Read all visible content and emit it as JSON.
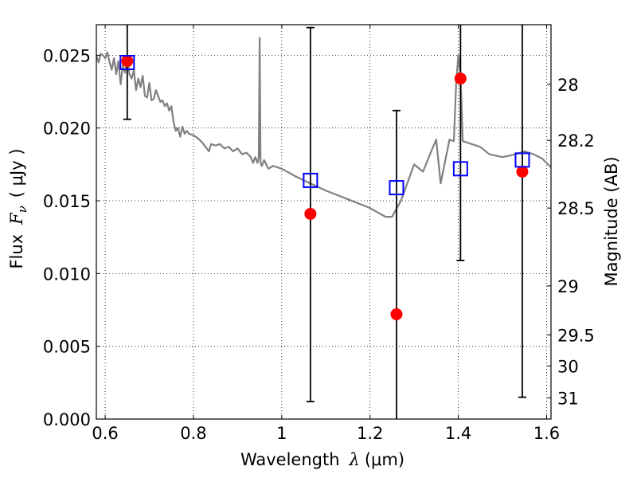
{
  "chart_data": {
    "type": "scatter",
    "title": "",
    "xlabel": "Wavelength",
    "xlabel_symbol": "λ",
    "xlabel_unit": "(μm)",
    "ylabel": "Flux",
    "ylabel_symbol": "F",
    "ylabel_subscript": "ν",
    "ylabel_unit": "( μJy )",
    "y2label": "Magnitude (AB)",
    "xlim": [
      0.58,
      1.61
    ],
    "ylim": [
      0.0,
      0.0271
    ],
    "grid": true,
    "x_ticks": [
      0.6,
      0.8,
      1.0,
      1.2,
      1.4,
      1.6
    ],
    "x_tick_labels": [
      "0.6",
      "0.8",
      "1",
      "1.2",
      "1.4",
      "1.6"
    ],
    "y_ticks": [
      0.0,
      0.005,
      0.01,
      0.015,
      0.02,
      0.025
    ],
    "y_tick_labels": [
      "0.000",
      "0.005",
      "0.010",
      "0.015",
      "0.020",
      "0.025"
    ],
    "y2_ticks": [
      {
        "label": "28",
        "flux": 0.023
      },
      {
        "label": "28.2",
        "flux": 0.01915
      },
      {
        "label": "28.5",
        "flux": 0.0145
      },
      {
        "label": "29",
        "flux": 0.00915
      },
      {
        "label": "29.5",
        "flux": 0.00578
      },
      {
        "label": "30",
        "flux": 0.00365
      },
      {
        "label": "31",
        "flux": 0.00145
      }
    ],
    "series": [
      {
        "kind": "line",
        "color": "#808080",
        "x": [
          0.58,
          0.585,
          0.59,
          0.595,
          0.6,
          0.605,
          0.61,
          0.615,
          0.62,
          0.625,
          0.63,
          0.635,
          0.64,
          0.645,
          0.65,
          0.655,
          0.66,
          0.665,
          0.67,
          0.675,
          0.68,
          0.685,
          0.69,
          0.695,
          0.7,
          0.705,
          0.71,
          0.715,
          0.72,
          0.725,
          0.73,
          0.735,
          0.74,
          0.745,
          0.75,
          0.755,
          0.76,
          0.765,
          0.77,
          0.775,
          0.78,
          0.785,
          0.79,
          0.8,
          0.81,
          0.82,
          0.83,
          0.835,
          0.84,
          0.85,
          0.86,
          0.87,
          0.88,
          0.89,
          0.9,
          0.91,
          0.92,
          0.93,
          0.935,
          0.94,
          0.945,
          0.948,
          0.95,
          0.952,
          0.955,
          0.96,
          0.97,
          0.98,
          1.0,
          1.03,
          1.05,
          1.1,
          1.15,
          1.2,
          1.235,
          1.25,
          1.27,
          1.3,
          1.32,
          1.34,
          1.35,
          1.36,
          1.38,
          1.39,
          1.395,
          1.4,
          1.405,
          1.41,
          1.43,
          1.45,
          1.47,
          1.5,
          1.53,
          1.55,
          1.57,
          1.59,
          1.6,
          1.61
        ],
        "y": [
          0.025,
          0.0245,
          0.0251,
          0.025,
          0.0248,
          0.0252,
          0.0245,
          0.024,
          0.0248,
          0.0237,
          0.0246,
          0.023,
          0.0243,
          0.0238,
          0.0247,
          0.0237,
          0.0234,
          0.024,
          0.0226,
          0.0234,
          0.0228,
          0.0236,
          0.0222,
          0.0221,
          0.0231,
          0.0219,
          0.022,
          0.0226,
          0.0222,
          0.0218,
          0.0219,
          0.0215,
          0.0217,
          0.0212,
          0.0215,
          0.0204,
          0.0198,
          0.02,
          0.0194,
          0.0201,
          0.0196,
          0.0198,
          0.0196,
          0.0195,
          0.0193,
          0.019,
          0.0186,
          0.0184,
          0.0189,
          0.0188,
          0.0189,
          0.0186,
          0.0187,
          0.0184,
          0.0186,
          0.0182,
          0.0183,
          0.018,
          0.0176,
          0.018,
          0.0176,
          0.018,
          0.0262,
          0.0176,
          0.0174,
          0.0178,
          0.0172,
          0.0174,
          0.0172,
          0.0167,
          0.0164,
          0.0157,
          0.0151,
          0.0145,
          0.0139,
          0.0139,
          0.015,
          0.0175,
          0.017,
          0.0185,
          0.0192,
          0.0162,
          0.0192,
          0.0191,
          0.023,
          0.025,
          0.0237,
          0.0191,
          0.0189,
          0.0187,
          0.0182,
          0.018,
          0.0182,
          0.0184,
          0.0182,
          0.0179,
          0.0176,
          0.0173
        ]
      },
      {
        "kind": "points",
        "marker": "circle-filled",
        "color": "#ff0000",
        "x": [
          0.65,
          1.065,
          1.26,
          1.405,
          1.545
        ],
        "y": [
          0.0246,
          0.0141,
          0.0072,
          0.0234,
          0.017
        ]
      },
      {
        "kind": "points",
        "marker": "square-open",
        "color": "#0000ff",
        "x": [
          0.65,
          1.065,
          1.26,
          1.405,
          1.545
        ],
        "y": [
          0.0245,
          0.0164,
          0.0159,
          0.0172,
          0.0178
        ]
      },
      {
        "kind": "errorbars",
        "color": "#000000",
        "x": [
          0.65,
          1.065,
          1.26,
          1.405,
          1.545
        ],
        "ylow": [
          0.0206,
          0.0012,
          0.0,
          0.0109,
          0.0015
        ],
        "yhigh": [
          0.0271,
          0.0269,
          0.0212,
          0.0271,
          0.0271
        ],
        "show_low_cap": [
          true,
          true,
          false,
          true,
          true
        ],
        "show_high_cap": [
          false,
          true,
          true,
          false,
          false
        ]
      }
    ]
  }
}
